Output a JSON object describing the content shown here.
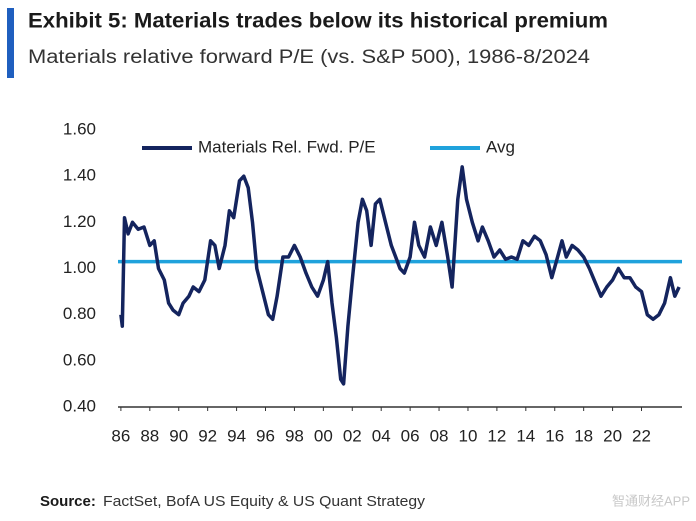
{
  "chart_data": {
    "type": "line",
    "title": "Exhibit 5: Materials trades below its historical premium",
    "subtitle": "Materials relative forward P/E (vs. S&P 500), 1986-8/2024",
    "source_label": "Source:",
    "source": "FactSet, BofA US Equity & US Quant Strategy",
    "watermark": "智通财经APP",
    "x": [
      1986.0,
      1986.1,
      1986.25,
      1986.5,
      1986.8,
      1987.2,
      1987.6,
      1988.0,
      1988.3,
      1988.6,
      1989.0,
      1989.3,
      1989.6,
      1990.0,
      1990.3,
      1990.7,
      1991.0,
      1991.4,
      1991.8,
      1992.2,
      1992.5,
      1992.8,
      1993.2,
      1993.5,
      1993.8,
      1994.2,
      1994.5,
      1994.8,
      1995.1,
      1995.4,
      1995.8,
      1996.2,
      1996.5,
      1996.8,
      1997.2,
      1997.6,
      1998.0,
      1998.4,
      1998.8,
      1999.2,
      1999.6,
      2000.0,
      2000.3,
      2000.6,
      2000.9,
      2001.2,
      2001.4,
      2001.7,
      2002.0,
      2002.4,
      2002.7,
      2003.0,
      2003.3,
      2003.6,
      2003.9,
      2004.3,
      2004.7,
      2005.0,
      2005.3,
      2005.6,
      2006.0,
      2006.3,
      2006.6,
      2007.0,
      2007.4,
      2007.8,
      2008.2,
      2008.6,
      2008.9,
      2009.3,
      2009.6,
      2009.9,
      2010.3,
      2010.7,
      2011.0,
      2011.4,
      2011.8,
      2012.2,
      2012.6,
      2013.0,
      2013.4,
      2013.8,
      2014.2,
      2014.6,
      2015.0,
      2015.4,
      2015.8,
      2016.2,
      2016.5,
      2016.8,
      2017.2,
      2017.6,
      2018.0,
      2018.4,
      2018.8,
      2019.2,
      2019.6,
      2020.0,
      2020.4,
      2020.8,
      2021.2,
      2021.6,
      2022.0,
      2022.4,
      2022.8,
      2023.2,
      2023.6,
      2024.0,
      2024.3,
      2024.6
    ],
    "series": [
      {
        "name": "Materials Rel. Fwd. P/E",
        "color": "#14245e",
        "values": [
          0.8,
          0.75,
          1.22,
          1.15,
          1.2,
          1.17,
          1.18,
          1.1,
          1.12,
          1.0,
          0.95,
          0.85,
          0.82,
          0.8,
          0.85,
          0.88,
          0.92,
          0.9,
          0.95,
          1.12,
          1.1,
          1.0,
          1.1,
          1.25,
          1.22,
          1.38,
          1.4,
          1.35,
          1.2,
          1.0,
          0.9,
          0.8,
          0.78,
          0.88,
          1.05,
          1.05,
          1.1,
          1.05,
          0.98,
          0.92,
          0.88,
          0.95,
          1.03,
          0.85,
          0.7,
          0.52,
          0.5,
          0.75,
          0.95,
          1.2,
          1.3,
          1.25,
          1.1,
          1.28,
          1.3,
          1.2,
          1.1,
          1.05,
          1.0,
          0.98,
          1.05,
          1.2,
          1.1,
          1.05,
          1.18,
          1.1,
          1.2,
          1.05,
          0.92,
          1.3,
          1.44,
          1.3,
          1.2,
          1.12,
          1.18,
          1.12,
          1.05,
          1.08,
          1.04,
          1.05,
          1.04,
          1.12,
          1.1,
          1.14,
          1.12,
          1.06,
          0.96,
          1.05,
          1.12,
          1.05,
          1.1,
          1.08,
          1.05,
          1.0,
          0.94,
          0.88,
          0.92,
          0.95,
          1.0,
          0.96,
          0.96,
          0.92,
          0.9,
          0.8,
          0.78,
          0.8,
          0.85,
          0.96,
          0.88,
          0.92
        ]
      }
    ],
    "reference_lines": [
      {
        "name": "Avg",
        "color": "#1fa2dc",
        "value": 1.03
      }
    ],
    "xlim": [
      1985.8,
      2024.8
    ],
    "xticks": [
      {
        "value": 1986,
        "label": "86"
      },
      {
        "value": 1988,
        "label": "88"
      },
      {
        "value": 1990,
        "label": "90"
      },
      {
        "value": 1992,
        "label": "92"
      },
      {
        "value": 1994,
        "label": "94"
      },
      {
        "value": 1996,
        "label": "96"
      },
      {
        "value": 1998,
        "label": "98"
      },
      {
        "value": 2000,
        "label": "00"
      },
      {
        "value": 2002,
        "label": "02"
      },
      {
        "value": 2004,
        "label": "04"
      },
      {
        "value": 2006,
        "label": "06"
      },
      {
        "value": 2008,
        "label": "08"
      },
      {
        "value": 2010,
        "label": "10"
      },
      {
        "value": 2012,
        "label": "12"
      },
      {
        "value": 2014,
        "label": "14"
      },
      {
        "value": 2016,
        "label": "16"
      },
      {
        "value": 2018,
        "label": "18"
      },
      {
        "value": 2020,
        "label": "20"
      },
      {
        "value": 2022,
        "label": "22"
      }
    ],
    "ylim": [
      0.4,
      1.6
    ],
    "yticks": [
      {
        "value": 0.4,
        "label": "0.40"
      },
      {
        "value": 0.6,
        "label": "0.60"
      },
      {
        "value": 0.8,
        "label": "0.80"
      },
      {
        "value": 1.0,
        "label": "1.00"
      },
      {
        "value": 1.2,
        "label": "1.20"
      },
      {
        "value": 1.4,
        "label": "1.40"
      },
      {
        "value": 1.6,
        "label": "1.60"
      }
    ],
    "grid": false
  }
}
